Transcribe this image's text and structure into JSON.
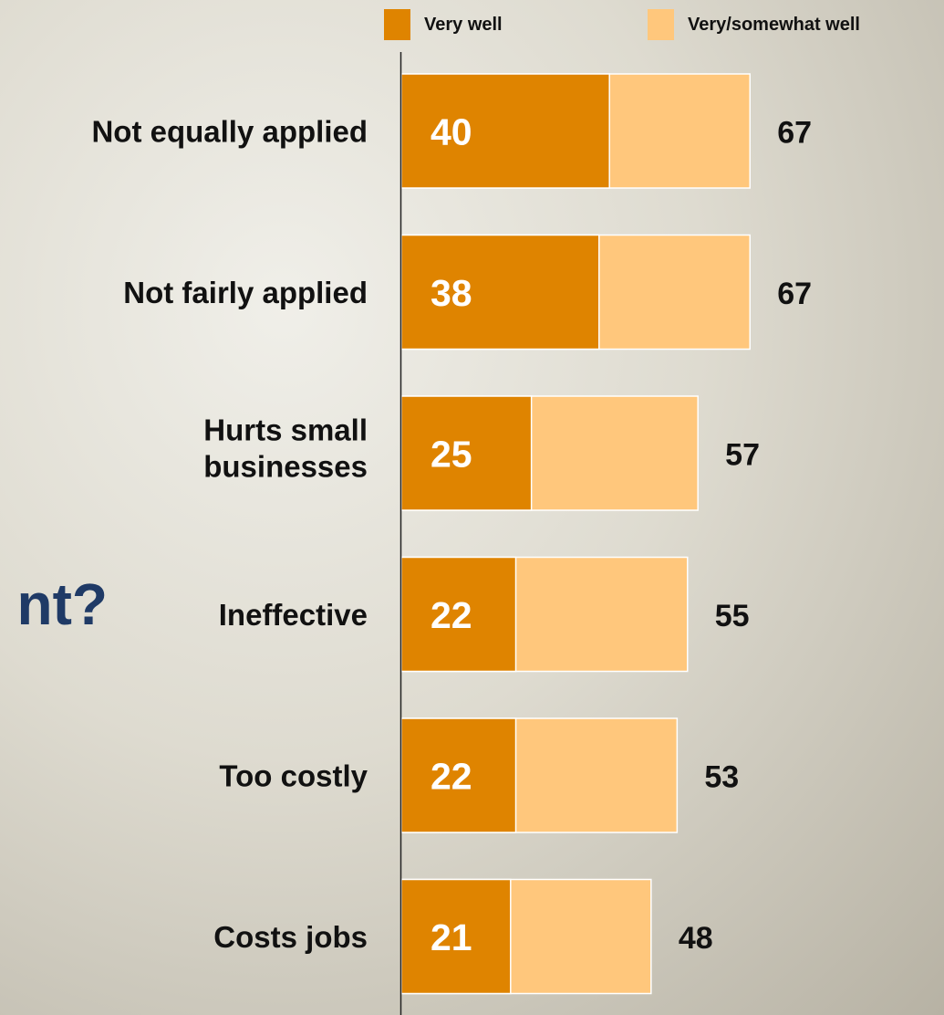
{
  "slide": {
    "partial_title": "nt?"
  },
  "chart_data": {
    "type": "bar",
    "orientation": "horizontal",
    "stacked": "overlay",
    "categories": [
      [
        "Not equally applied"
      ],
      [
        "Not fairly applied"
      ],
      [
        "Hurts small",
        "businesses"
      ],
      [
        "Ineffective"
      ],
      [
        "Too costly"
      ],
      [
        "Costs jobs"
      ]
    ],
    "series": [
      {
        "name": "Very well",
        "color": "#df8400",
        "values": [
          40,
          38,
          25,
          22,
          22,
          21
        ]
      },
      {
        "name": "Very/somewhat well",
        "color": "#ffc77c",
        "values": [
          67,
          67,
          57,
          55,
          53,
          48
        ]
      }
    ],
    "xlim": [
      0,
      100
    ],
    "grid": false,
    "legend": "top-right"
  }
}
